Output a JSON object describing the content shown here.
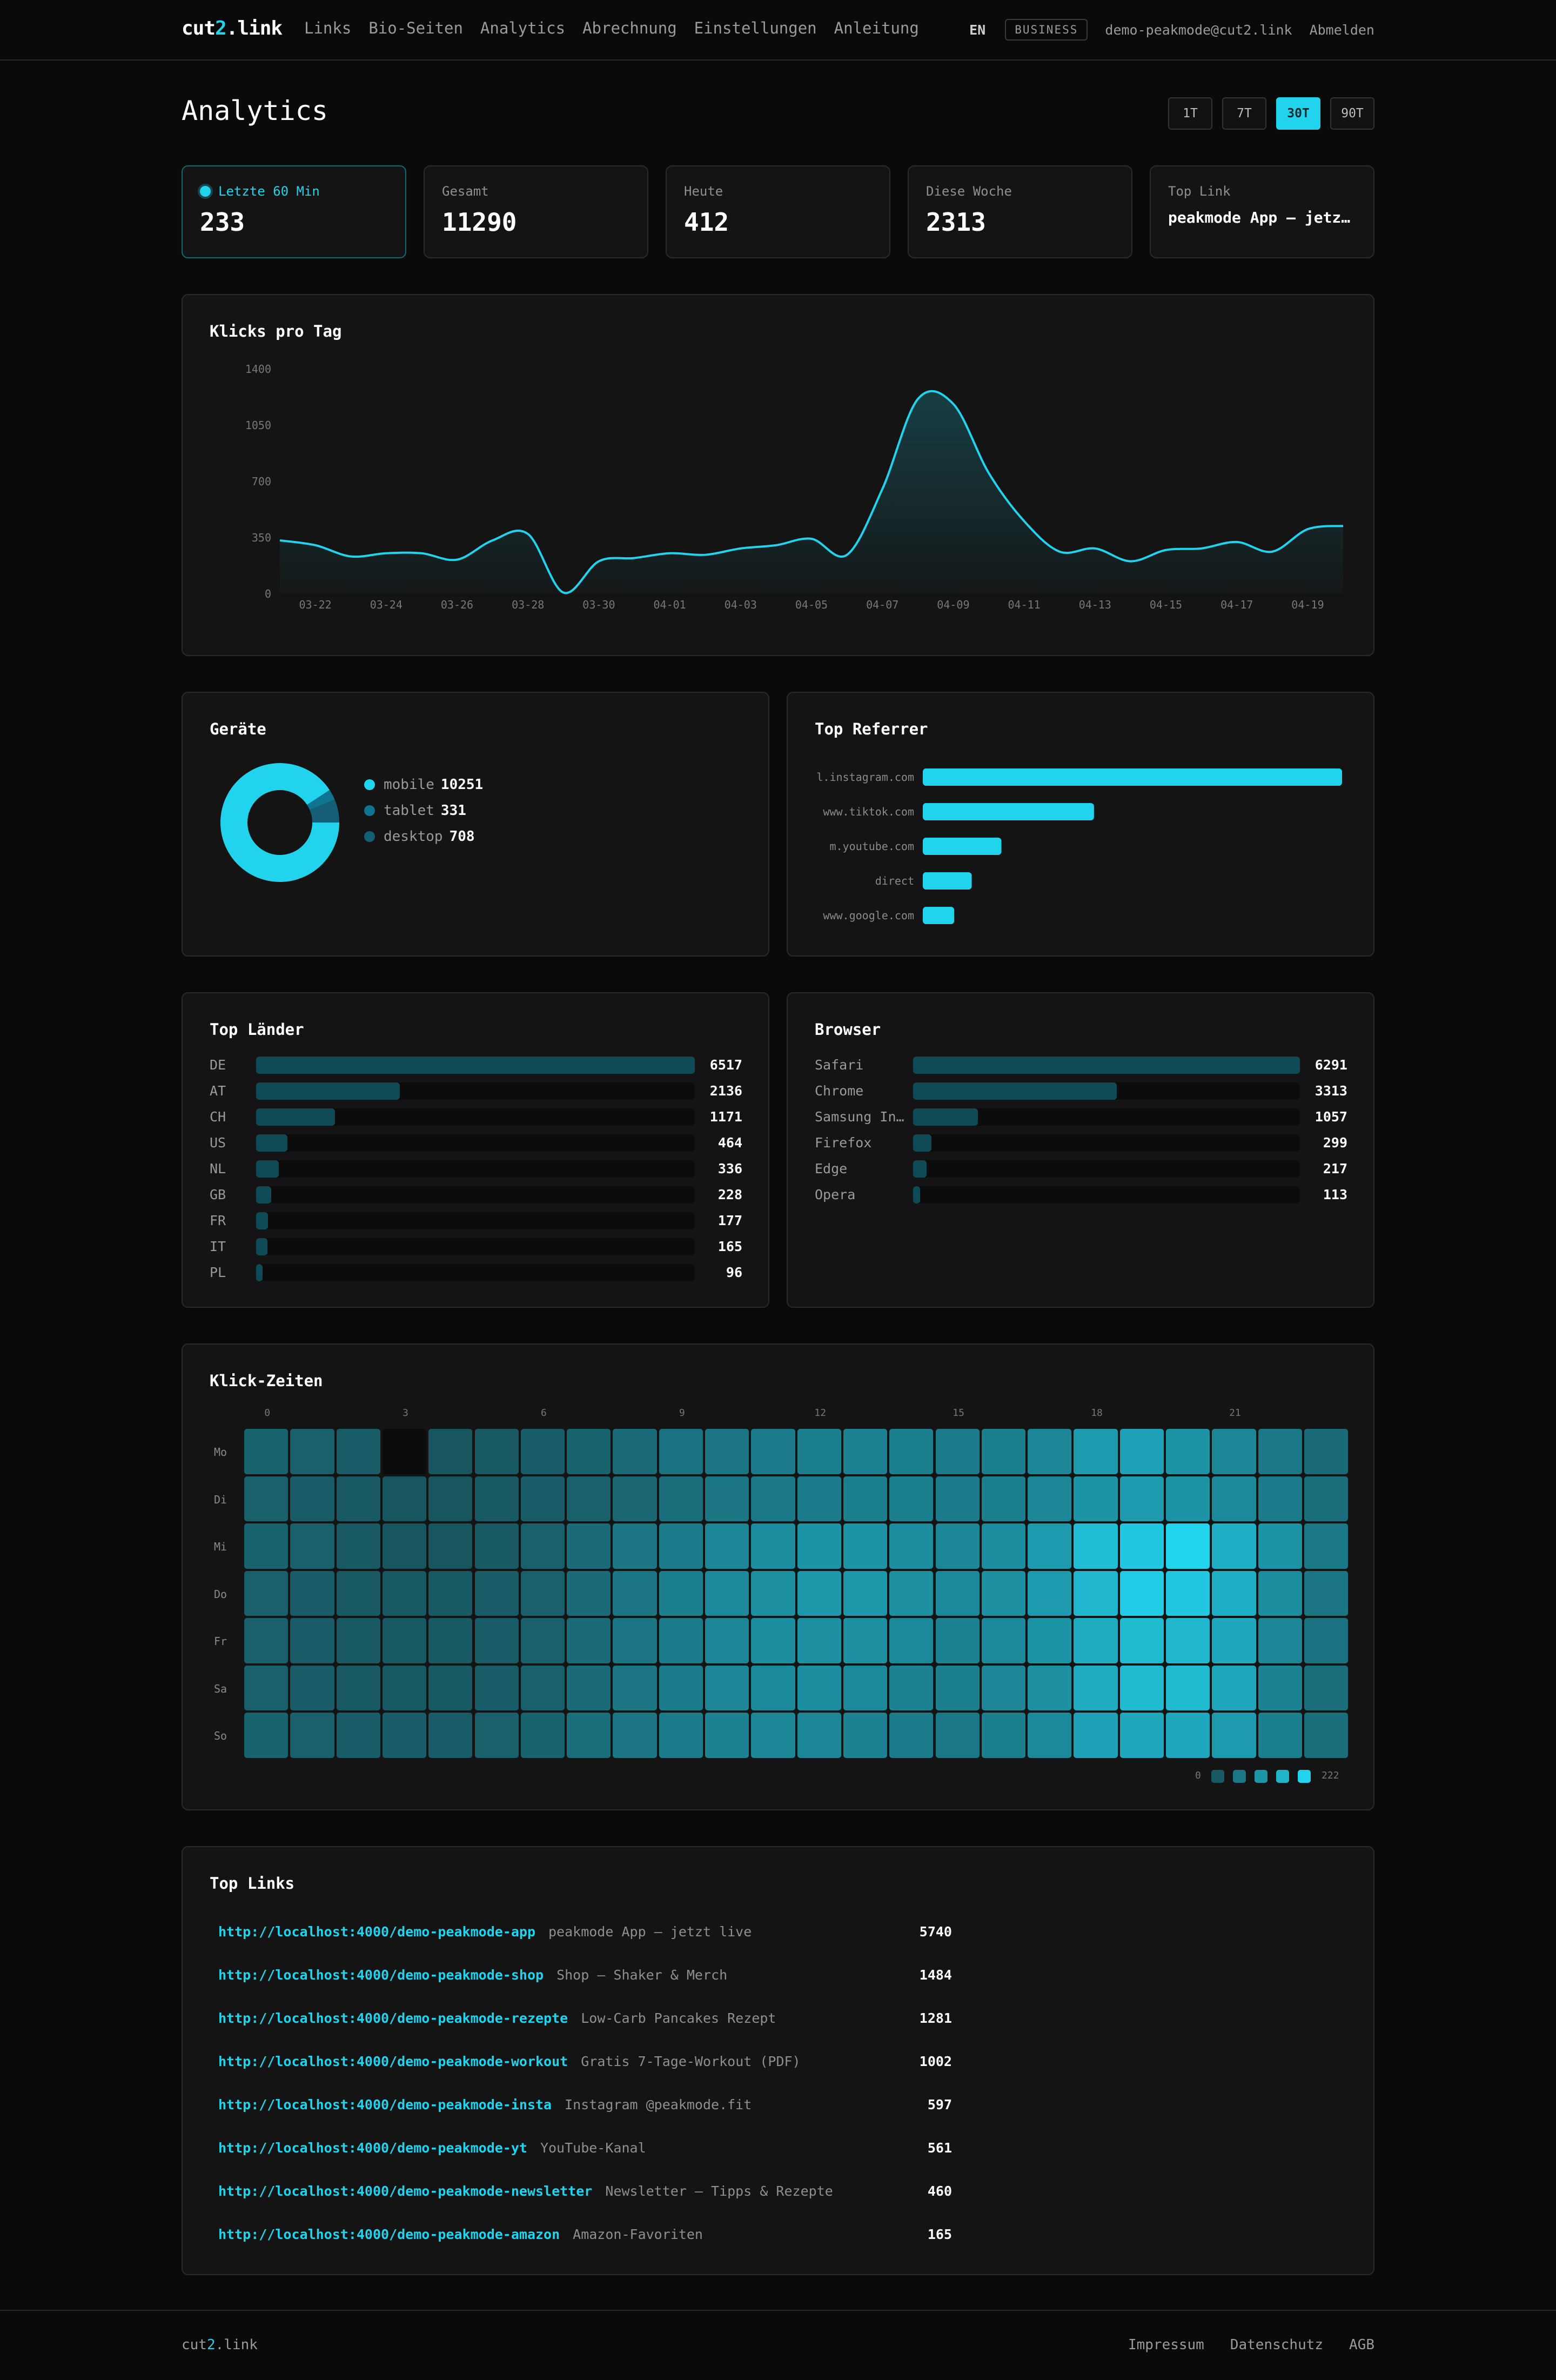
{
  "header": {
    "logo_a": "cut",
    "logo_b": "2",
    "logo_c": ".link",
    "nav": [
      "Links",
      "Bio-Seiten",
      "Analytics",
      "Abrechnung",
      "Einstellungen",
      "Anleitung"
    ],
    "lang": "EN",
    "plan": "BUSINESS",
    "email": "demo-peakmode@cut2.link",
    "logout": "Abmelden"
  },
  "page": {
    "title": "Analytics",
    "ranges": [
      "1T",
      "7T",
      "30T",
      "90T"
    ],
    "active_range": "30T"
  },
  "stats": [
    {
      "label": "Letzte 60 Min",
      "value": "233",
      "live": true
    },
    {
      "label": "Gesamt",
      "value": "11290"
    },
    {
      "label": "Heute",
      "value": "412"
    },
    {
      "label": "Diese Woche",
      "value": "2313"
    },
    {
      "label": "Top Link",
      "value": "peakmode App — jetzt…"
    }
  ],
  "clicks_chart": {
    "title": "Klicks pro Tag",
    "chart_data": {
      "type": "area",
      "yticks": [
        "1400",
        "1050",
        "700",
        "350",
        "0"
      ],
      "ylim": [
        0,
        1400
      ],
      "xticks": [
        "03-22",
        "03-24",
        "03-26",
        "03-28",
        "03-30",
        "04-01",
        "04-03",
        "04-05",
        "04-07",
        "04-09",
        "04-11",
        "04-13",
        "04-15",
        "04-17",
        "04-19"
      ],
      "x": [
        "03-21",
        "03-22",
        "03-23",
        "03-24",
        "03-25",
        "03-26",
        "03-27",
        "03-28",
        "03-29",
        "03-30",
        "03-31",
        "04-01",
        "04-02",
        "04-03",
        "04-04",
        "04-05",
        "04-06",
        "04-07",
        "04-08",
        "04-09",
        "04-10",
        "04-11",
        "04-12",
        "04-13",
        "04-14",
        "04-15",
        "04-16",
        "04-17",
        "04-18",
        "04-19",
        "04-20"
      ],
      "values": [
        330,
        300,
        230,
        250,
        250,
        210,
        330,
        370,
        5,
        200,
        220,
        250,
        240,
        280,
        300,
        340,
        240,
        650,
        1210,
        1180,
        750,
        450,
        260,
        280,
        200,
        270,
        280,
        320,
        260,
        400,
        420
      ],
      "color": "#22d3ee"
    }
  },
  "devices": {
    "title": "Geräte",
    "chart_data": {
      "type": "pie",
      "labels": [
        "mobile",
        "tablet",
        "desktop"
      ],
      "values": [
        10251,
        331,
        708
      ],
      "colors": [
        "#22d3ee",
        "#0e7490",
        "#155e75"
      ]
    }
  },
  "referrers": {
    "title": "Top Referrer",
    "chart_data": {
      "type": "bar",
      "categories": [
        "l.instagram.com",
        "www.tiktok.com",
        "m.youtube.com",
        "direct",
        "www.google.com"
      ],
      "values": [
        2400,
        980,
        450,
        280,
        180
      ],
      "color": "#22d3ee"
    }
  },
  "countries": {
    "title": "Top Länder",
    "items": [
      {
        "label": "DE",
        "value": 6517
      },
      {
        "label": "AT",
        "value": 2136
      },
      {
        "label": "CH",
        "value": 1171
      },
      {
        "label": "US",
        "value": 464
      },
      {
        "label": "NL",
        "value": 336
      },
      {
        "label": "GB",
        "value": 228
      },
      {
        "label": "FR",
        "value": 177
      },
      {
        "label": "IT",
        "value": 165
      },
      {
        "label": "PL",
        "value": 96
      }
    ]
  },
  "browsers": {
    "title": "Browser",
    "items": [
      {
        "label": "Safari",
        "value": 6291
      },
      {
        "label": "Chrome",
        "value": 3313
      },
      {
        "label": "Samsung In…",
        "value": 1057
      },
      {
        "label": "Firefox",
        "value": 299
      },
      {
        "label": "Edge",
        "value": 217
      },
      {
        "label": "Opera",
        "value": 113
      }
    ]
  },
  "heatmap": {
    "title": "Klick-Zeiten",
    "hour_labels": [
      "0",
      "3",
      "6",
      "9",
      "12",
      "15",
      "18",
      "21"
    ],
    "days": [
      "Mo",
      "Di",
      "Mi",
      "Do",
      "Fr",
      "Sa",
      "So"
    ],
    "legend_min": "0",
    "legend_max": "222",
    "chart_data": {
      "type": "heatmap",
      "max": 222,
      "rows": [
        [
          60,
          55,
          50,
          0,
          40,
          45,
          50,
          60,
          70,
          80,
          85,
          95,
          100,
          105,
          100,
          95,
          100,
          110,
          140,
          150,
          130,
          110,
          90,
          70
        ],
        [
          55,
          50,
          45,
          40,
          40,
          45,
          50,
          55,
          65,
          75,
          85,
          90,
          95,
          100,
          100,
          95,
          100,
          110,
          130,
          140,
          130,
          115,
          95,
          75
        ],
        [
          60,
          55,
          45,
          40,
          40,
          45,
          55,
          70,
          85,
          95,
          110,
          120,
          130,
          130,
          120,
          110,
          120,
          140,
          190,
          205,
          222,
          170,
          130,
          90
        ],
        [
          55,
          50,
          45,
          45,
          45,
          50,
          55,
          70,
          85,
          100,
          115,
          125,
          135,
          135,
          125,
          115,
          125,
          140,
          180,
          210,
          205,
          170,
          120,
          85
        ],
        [
          55,
          50,
          45,
          45,
          45,
          50,
          55,
          70,
          85,
          95,
          110,
          120,
          125,
          125,
          115,
          105,
          115,
          130,
          165,
          185,
          180,
          160,
          110,
          80
        ],
        [
          55,
          50,
          45,
          45,
          45,
          50,
          55,
          70,
          85,
          95,
          110,
          115,
          120,
          115,
          105,
          100,
          110,
          125,
          165,
          185,
          185,
          155,
          105,
          75
        ],
        [
          60,
          55,
          50,
          50,
          50,
          55,
          60,
          75,
          85,
          95,
          105,
          110,
          110,
          105,
          95,
          90,
          100,
          115,
          150,
          160,
          160,
          140,
          100,
          75
        ]
      ]
    }
  },
  "top_links": {
    "title": "Top Links",
    "items": [
      {
        "url": "http://localhost:4000/demo-peakmode-app",
        "title": "peakmode App — jetzt live",
        "count": "5740"
      },
      {
        "url": "http://localhost:4000/demo-peakmode-shop",
        "title": "Shop — Shaker & Merch",
        "count": "1484"
      },
      {
        "url": "http://localhost:4000/demo-peakmode-rezepte",
        "title": "Low-Carb Pancakes Rezept",
        "count": "1281"
      },
      {
        "url": "http://localhost:4000/demo-peakmode-workout",
        "title": "Gratis 7-Tage-Workout (PDF)",
        "count": "1002"
      },
      {
        "url": "http://localhost:4000/demo-peakmode-insta",
        "title": "Instagram @peakmode.fit",
        "count": "597"
      },
      {
        "url": "http://localhost:4000/demo-peakmode-yt",
        "title": "YouTube-Kanal",
        "count": "561"
      },
      {
        "url": "http://localhost:4000/demo-peakmode-newsletter",
        "title": "Newsletter — Tipps & Rezepte",
        "count": "460"
      },
      {
        "url": "http://localhost:4000/demo-peakmode-amazon",
        "title": "Amazon-Favoriten",
        "count": "165"
      }
    ]
  },
  "footer": {
    "logo_a": "cut",
    "logo_b": "2",
    "logo_c": ".link",
    "links": [
      "Impressum",
      "Datenschutz",
      "AGB"
    ]
  }
}
